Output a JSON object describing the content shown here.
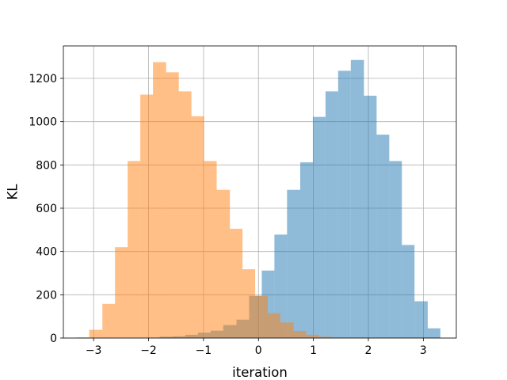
{
  "chart_data": {
    "type": "bar",
    "subtype": "overlapping-histogram",
    "title": "",
    "xlabel": "iteration",
    "ylabel": "KL",
    "xlim": [
      -3.55,
      3.6
    ],
    "ylim": [
      0,
      1350
    ],
    "xticks": [
      -3,
      -2,
      -1,
      0,
      1,
      2,
      3
    ],
    "xtick_labels": [
      "−3",
      "−2",
      "−1",
      "0",
      "1",
      "2",
      "3"
    ],
    "yticks": [
      0,
      200,
      400,
      600,
      800,
      1000,
      1200
    ],
    "ytick_labels": [
      "0",
      "200",
      "400",
      "600",
      "800",
      "1000",
      "1200"
    ],
    "grid": true,
    "legend": "none",
    "series": [
      {
        "color": "#1f77b4",
        "opacity": 0.5,
        "bins": [
          {
            "x0": -2.03,
            "x1": -1.8,
            "y": 2
          },
          {
            "x0": -1.8,
            "x1": -1.56,
            "y": 6
          },
          {
            "x0": -1.56,
            "x1": -1.33,
            "y": 8
          },
          {
            "x0": -1.33,
            "x1": -1.1,
            "y": 15
          },
          {
            "x0": -1.1,
            "x1": -0.87,
            "y": 25
          },
          {
            "x0": -0.87,
            "x1": -0.64,
            "y": 34
          },
          {
            "x0": -0.64,
            "x1": -0.4,
            "y": 60
          },
          {
            "x0": -0.4,
            "x1": -0.17,
            "y": 85
          },
          {
            "x0": -0.17,
            "x1": 0.06,
            "y": 195
          },
          {
            "x0": 0.06,
            "x1": 0.29,
            "y": 312
          },
          {
            "x0": 0.29,
            "x1": 0.52,
            "y": 478
          },
          {
            "x0": 0.52,
            "x1": 0.76,
            "y": 685
          },
          {
            "x0": 0.76,
            "x1": 0.99,
            "y": 812
          },
          {
            "x0": 0.99,
            "x1": 1.22,
            "y": 1022
          },
          {
            "x0": 1.22,
            "x1": 1.45,
            "y": 1140
          },
          {
            "x0": 1.45,
            "x1": 1.68,
            "y": 1235
          },
          {
            "x0": 1.68,
            "x1": 1.92,
            "y": 1285
          },
          {
            "x0": 1.92,
            "x1": 2.15,
            "y": 1120
          },
          {
            "x0": 2.15,
            "x1": 2.38,
            "y": 940
          },
          {
            "x0": 2.38,
            "x1": 2.61,
            "y": 818
          },
          {
            "x0": 2.61,
            "x1": 2.84,
            "y": 430
          },
          {
            "x0": 2.84,
            "x1": 3.08,
            "y": 170
          },
          {
            "x0": 3.08,
            "x1": 3.31,
            "y": 45
          }
        ]
      },
      {
        "color": "#ff7f0e",
        "opacity": 0.5,
        "bins": [
          {
            "x0": -3.31,
            "x1": -3.08,
            "y": 3
          },
          {
            "x0": -3.08,
            "x1": -2.84,
            "y": 38
          },
          {
            "x0": -2.84,
            "x1": -2.61,
            "y": 158
          },
          {
            "x0": -2.61,
            "x1": -2.38,
            "y": 420
          },
          {
            "x0": -2.38,
            "x1": -2.15,
            "y": 818
          },
          {
            "x0": -2.15,
            "x1": -1.92,
            "y": 1125
          },
          {
            "x0": -1.92,
            "x1": -1.68,
            "y": 1275
          },
          {
            "x0": -1.68,
            "x1": -1.45,
            "y": 1228
          },
          {
            "x0": -1.45,
            "x1": -1.22,
            "y": 1140
          },
          {
            "x0": -1.22,
            "x1": -0.99,
            "y": 1025
          },
          {
            "x0": -0.99,
            "x1": -0.76,
            "y": 818
          },
          {
            "x0": -0.76,
            "x1": -0.52,
            "y": 685
          },
          {
            "x0": -0.52,
            "x1": -0.29,
            "y": 505
          },
          {
            "x0": -0.29,
            "x1": -0.06,
            "y": 318
          },
          {
            "x0": -0.06,
            "x1": 0.17,
            "y": 195
          },
          {
            "x0": 0.17,
            "x1": 0.4,
            "y": 115
          },
          {
            "x0": 0.4,
            "x1": 0.64,
            "y": 72
          },
          {
            "x0": 0.64,
            "x1": 0.87,
            "y": 33
          },
          {
            "x0": 0.87,
            "x1": 1.1,
            "y": 15
          },
          {
            "x0": 1.1,
            "x1": 1.33,
            "y": 6
          },
          {
            "x0": 1.33,
            "x1": 1.56,
            "y": 3
          }
        ]
      }
    ]
  }
}
